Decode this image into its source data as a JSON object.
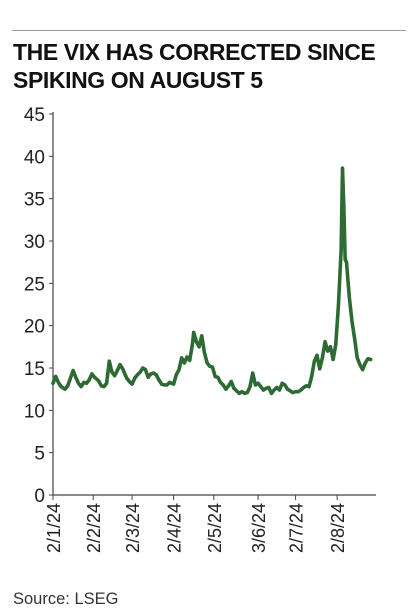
{
  "chart_data": {
    "type": "line",
    "title": "THE VIX HAS CORRECTED SINCE\nSPIKING ON AUGUST 5",
    "xlabel": "",
    "ylabel": "",
    "ylim": [
      0,
      45
    ],
    "yticks": [
      0,
      5,
      10,
      15,
      20,
      25,
      30,
      35,
      40,
      45
    ],
    "xlim": [
      "2024-01-02",
      "2024-08-30"
    ],
    "xticks": [
      {
        "date": "2024-01-01",
        "label": "2/1/24"
      },
      {
        "date": "2024-02-01",
        "label": "2/2/24"
      },
      {
        "date": "2024-03-01",
        "label": "2/3/24"
      },
      {
        "date": "2024-04-01",
        "label": "2/4/24"
      },
      {
        "date": "2024-05-01",
        "label": "2/5/24"
      },
      {
        "date": "2024-06-03",
        "label": "3/6/24"
      },
      {
        "date": "2024-07-01",
        "label": "2/7/24"
      },
      {
        "date": "2024-08-01",
        "label": "2/8/24"
      }
    ],
    "grid": false,
    "legend": "none",
    "line_color": "#2e6b34",
    "series": [
      {
        "name": "",
        "points": [
          [
            "2024-01-02",
            13.2
          ],
          [
            "2024-01-04",
            14.0
          ],
          [
            "2024-01-06",
            13.3
          ],
          [
            "2024-01-08",
            12.8
          ],
          [
            "2024-01-11",
            12.5
          ],
          [
            "2024-01-13",
            12.9
          ],
          [
            "2024-01-15",
            13.8
          ],
          [
            "2024-01-17",
            14.7
          ],
          [
            "2024-01-19",
            13.9
          ],
          [
            "2024-01-21",
            13.2
          ],
          [
            "2024-01-23",
            12.8
          ],
          [
            "2024-01-25",
            13.3
          ],
          [
            "2024-01-27",
            13.2
          ],
          [
            "2024-01-29",
            13.6
          ],
          [
            "2024-01-31",
            14.3
          ],
          [
            "2024-02-02",
            13.9
          ],
          [
            "2024-02-05",
            13.5
          ],
          [
            "2024-02-07",
            12.9
          ],
          [
            "2024-02-09",
            12.8
          ],
          [
            "2024-02-11",
            13.2
          ],
          [
            "2024-02-13",
            15.8
          ],
          [
            "2024-02-15",
            14.5
          ],
          [
            "2024-02-17",
            14.1
          ],
          [
            "2024-02-19",
            14.7
          ],
          [
            "2024-02-21",
            15.4
          ],
          [
            "2024-02-23",
            14.9
          ],
          [
            "2024-02-26",
            13.8
          ],
          [
            "2024-02-28",
            13.4
          ],
          [
            "2024-03-01",
            13.1
          ],
          [
            "2024-03-03",
            13.8
          ],
          [
            "2024-03-05",
            14.2
          ],
          [
            "2024-03-07",
            14.5
          ],
          [
            "2024-03-09",
            15.0
          ],
          [
            "2024-03-11",
            14.8
          ],
          [
            "2024-03-13",
            13.9
          ],
          [
            "2024-03-15",
            14.3
          ],
          [
            "2024-03-17",
            14.4
          ],
          [
            "2024-03-19",
            14.2
          ],
          [
            "2024-03-21",
            13.6
          ],
          [
            "2024-03-23",
            13.1
          ],
          [
            "2024-03-25",
            13.0
          ],
          [
            "2024-03-27",
            13.0
          ],
          [
            "2024-03-29",
            13.3
          ],
          [
            "2024-04-01",
            13.1
          ],
          [
            "2024-04-03",
            14.2
          ],
          [
            "2024-04-05",
            14.8
          ],
          [
            "2024-04-07",
            16.2
          ],
          [
            "2024-04-09",
            15.6
          ],
          [
            "2024-04-11",
            16.3
          ],
          [
            "2024-04-13",
            15.9
          ],
          [
            "2024-04-15",
            17.8
          ],
          [
            "2024-04-16",
            19.2
          ],
          [
            "2024-04-18",
            18.1
          ],
          [
            "2024-04-20",
            17.5
          ],
          [
            "2024-04-22",
            18.8
          ],
          [
            "2024-04-24",
            16.8
          ],
          [
            "2024-04-26",
            15.6
          ],
          [
            "2024-04-28",
            15.2
          ],
          [
            "2024-04-30",
            15.1
          ],
          [
            "2024-05-02",
            14.0
          ],
          [
            "2024-05-04",
            13.9
          ],
          [
            "2024-05-06",
            13.3
          ],
          [
            "2024-05-08",
            13.0
          ],
          [
            "2024-05-10",
            12.5
          ],
          [
            "2024-05-12",
            12.9
          ],
          [
            "2024-05-14",
            13.4
          ],
          [
            "2024-05-16",
            12.6
          ],
          [
            "2024-05-18",
            12.3
          ],
          [
            "2024-05-20",
            12.0
          ],
          [
            "2024-05-22",
            12.2
          ],
          [
            "2024-05-24",
            12.0
          ],
          [
            "2024-05-26",
            12.1
          ],
          [
            "2024-05-28",
            12.8
          ],
          [
            "2024-05-30",
            14.4
          ],
          [
            "2024-06-01",
            13.0
          ],
          [
            "2024-06-03",
            13.2
          ],
          [
            "2024-06-05",
            12.8
          ],
          [
            "2024-06-07",
            12.4
          ],
          [
            "2024-06-09",
            12.6
          ],
          [
            "2024-06-11",
            12.7
          ],
          [
            "2024-06-13",
            12.0
          ],
          [
            "2024-06-15",
            12.4
          ],
          [
            "2024-06-17",
            12.7
          ],
          [
            "2024-06-19",
            12.4
          ],
          [
            "2024-06-21",
            13.2
          ],
          [
            "2024-06-23",
            13.0
          ],
          [
            "2024-06-25",
            12.5
          ],
          [
            "2024-06-27",
            12.3
          ],
          [
            "2024-06-29",
            12.1
          ],
          [
            "2024-07-01",
            12.2
          ],
          [
            "2024-07-03",
            12.2
          ],
          [
            "2024-07-05",
            12.4
          ],
          [
            "2024-07-07",
            12.7
          ],
          [
            "2024-07-09",
            12.9
          ],
          [
            "2024-07-11",
            12.8
          ],
          [
            "2024-07-13",
            14.0
          ],
          [
            "2024-07-15",
            15.8
          ],
          [
            "2024-07-17",
            16.5
          ],
          [
            "2024-07-19",
            14.9
          ],
          [
            "2024-07-21",
            16.2
          ],
          [
            "2024-07-23",
            18.1
          ],
          [
            "2024-07-25",
            17.0
          ],
          [
            "2024-07-27",
            17.5
          ],
          [
            "2024-07-29",
            16.0
          ],
          [
            "2024-07-31",
            17.8
          ],
          [
            "2024-08-02",
            22.5
          ],
          [
            "2024-08-04",
            29.0
          ],
          [
            "2024-08-05",
            38.6
          ],
          [
            "2024-08-06",
            34.0
          ],
          [
            "2024-08-07",
            27.8
          ],
          [
            "2024-08-08",
            27.5
          ],
          [
            "2024-08-10",
            23.5
          ],
          [
            "2024-08-12",
            20.6
          ],
          [
            "2024-08-14",
            18.5
          ],
          [
            "2024-08-16",
            16.2
          ],
          [
            "2024-08-18",
            15.4
          ],
          [
            "2024-08-20",
            14.8
          ],
          [
            "2024-08-22",
            15.6
          ],
          [
            "2024-08-24",
            16.1
          ],
          [
            "2024-08-26",
            16.0
          ]
        ]
      }
    ]
  },
  "footer": {
    "source": "Source: LSEG"
  }
}
